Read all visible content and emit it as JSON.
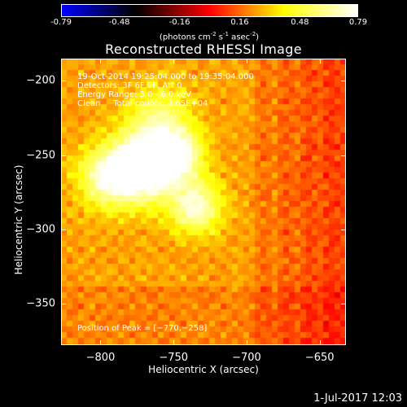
{
  "colorbar": {
    "ticks": [
      "-0.79",
      "-0.48",
      "-0.16",
      "0.16",
      "0.48",
      "0.79"
    ],
    "tick_values": [
      -0.79,
      -0.48,
      -0.16,
      0.16,
      0.48,
      0.79
    ],
    "range": [
      -0.79,
      0.79
    ],
    "unit_prefix": "(photons cm",
    "unit_exp1": "-2",
    "unit_mid": " s",
    "unit_exp2": "-1",
    "unit_mid2": " asec",
    "unit_exp3": "-2",
    "unit_suffix": ")",
    "colors": [
      "#0000ff",
      "#000000",
      "#ff0000",
      "#ffff00",
      "#ffffff"
    ]
  },
  "chart_data": {
    "type": "heatmap",
    "title": "Reconstructed RHESSI Image",
    "xlabel": "Heliocentric X (arcsec)",
    "ylabel": "Heliocentric Y (arcsec)",
    "xlim": [
      -827,
      -632
    ],
    "ylim": [
      -378,
      -185
    ],
    "xticks": [
      -800,
      -750,
      -700,
      -650
    ],
    "yticks": [
      -200,
      -250,
      -300,
      -350
    ],
    "xtick_labels": [
      "−800",
      "−750",
      "−700",
      "−650"
    ],
    "ytick_labels": [
      "−200",
      "−250",
      "−300",
      "−350"
    ],
    "colormap": "red-yellow-white (hot)",
    "sources": [
      {
        "x": -770,
        "y": -258,
        "amplitude": 0.79,
        "sigma": 15
      },
      {
        "x": -748,
        "y": -250,
        "amplitude": 0.55,
        "sigma": 12
      },
      {
        "x": -735,
        "y": -285,
        "amplitude": 0.5,
        "sigma": 12
      },
      {
        "x": -795,
        "y": -265,
        "amplitude": 0.45,
        "sigma": 14
      },
      {
        "x": -760,
        "y": -225,
        "amplitude": 0.3,
        "sigma": 15
      }
    ],
    "background": 0.25
  },
  "info": {
    "line1": "19-Oct-2014 19:25:04.000 to 19:35:04.000",
    "line2": "Detectors: 3F 6F 9F, Att 0",
    "line3": "Energy Range: 3.0 - 6.0 keV",
    "line4": "Clean     Total counts: 3.65E+04",
    "peak": "Position of Peak = [−770,−258]"
  },
  "footer": {
    "date": "1-Jul-2017 12:03"
  }
}
